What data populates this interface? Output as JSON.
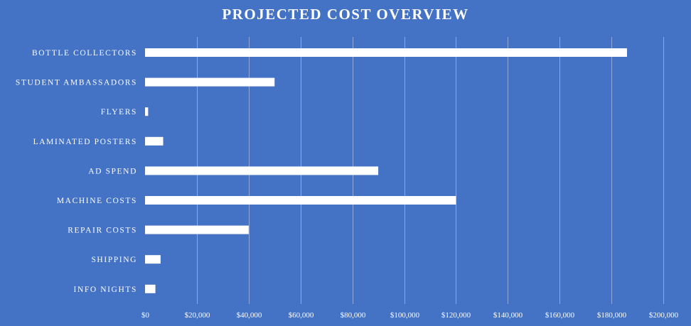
{
  "chart_data": {
    "type": "bar",
    "orientation": "horizontal",
    "title": "PROJECTED COST OVERVIEW",
    "xlabel": "",
    "ylabel": "",
    "categories": [
      "BOTTLE COLLECTORS",
      "STUDENT AMBASSADORS",
      "FLYERS",
      "LAMINATED POSTERS",
      "AD SPEND",
      "MACHINE COSTS",
      "REPAIR COSTS",
      "SHIPPING",
      "INFO NIGHTS"
    ],
    "values": [
      186000,
      50000,
      1200,
      7000,
      90000,
      120000,
      40000,
      6000,
      4000
    ],
    "xlim": [
      0,
      200000
    ],
    "x_ticks": [
      0,
      20000,
      40000,
      60000,
      80000,
      100000,
      120000,
      140000,
      160000,
      180000,
      200000
    ],
    "x_tick_labels": [
      "$0",
      "$20,000",
      "$40,000",
      "$60,000",
      "$80,000",
      "$100,000",
      "$120,000",
      "$140,000",
      "$160,000",
      "$180,000",
      "$200,000"
    ],
    "grid": true,
    "legend": "none"
  },
  "colors": {
    "background": "#4472c4",
    "bar": "#ffffff",
    "text": "#ffffff",
    "grid": "#8fa9dd"
  }
}
